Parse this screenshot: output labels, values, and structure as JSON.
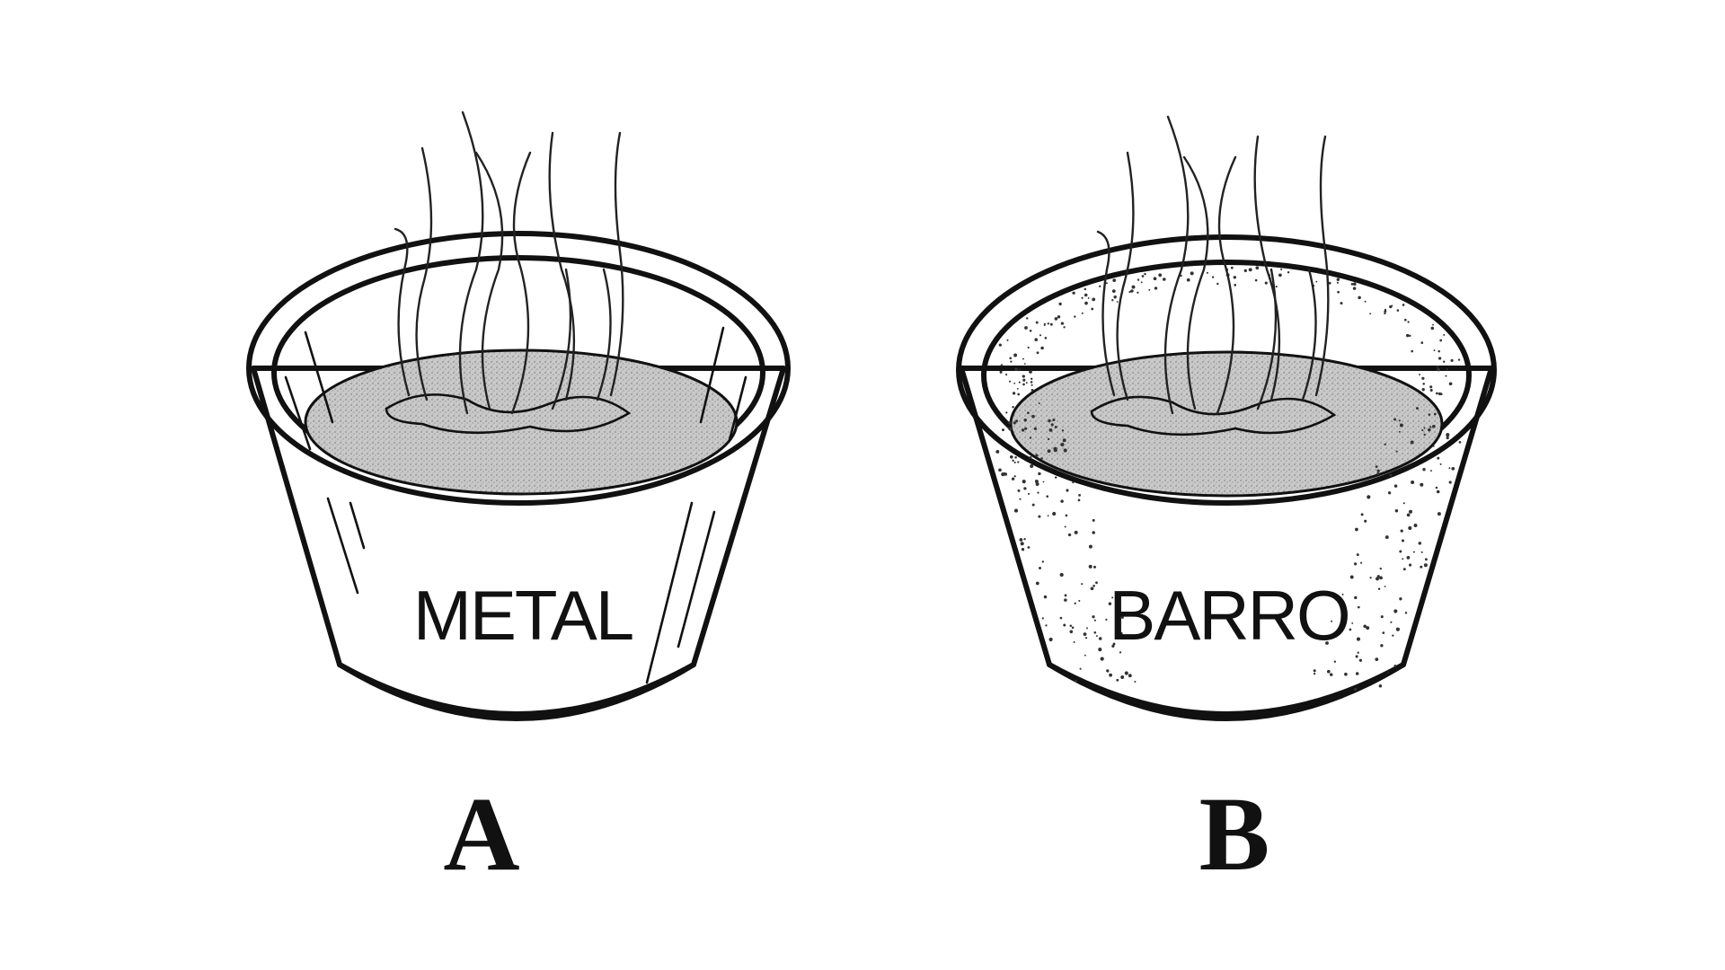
{
  "figure": {
    "pots": [
      {
        "id": "A",
        "material_label": "METAL",
        "caption": "A"
      },
      {
        "id": "B",
        "material_label": "BARRO",
        "caption": "B"
      }
    ]
  }
}
